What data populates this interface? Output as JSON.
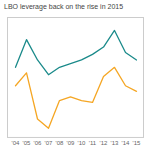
{
  "chart_data": {
    "type": "line",
    "title": "LBO leverage back on the rise in 2015",
    "categories": [
      "'04",
      "'05",
      "'06",
      "'07",
      "'08",
      "'09",
      "'10",
      "'11",
      "'12",
      "'13",
      "'14",
      "'15"
    ],
    "series": [
      {
        "color": "#1a8a8a",
        "values": [
          4.8,
          6.3,
          5.2,
          4.4,
          4.8,
          5.0,
          5.2,
          5.5,
          5.9,
          6.8,
          5.6,
          5.2
        ]
      },
      {
        "color": "#f5a623",
        "values": [
          3.8,
          4.5,
          2.0,
          1.5,
          3.0,
          3.2,
          3.0,
          2.9,
          4.3,
          4.8,
          3.8,
          3.5
        ]
      }
    ],
    "ylim": [
      1.0,
      7.5
    ],
    "yticks": [],
    "tick_labels": "x"
  }
}
